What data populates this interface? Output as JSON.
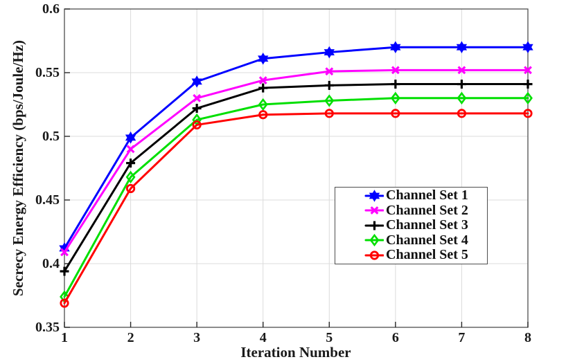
{
  "chart_data": {
    "type": "line",
    "xlabel": "Iteration Number",
    "ylabel": "Secrecy Energy Efficiency (bps/Joule/Hz)",
    "x": [
      1,
      2,
      3,
      4,
      5,
      6,
      7,
      8
    ],
    "xlim": [
      1,
      8
    ],
    "ylim": [
      0.35,
      0.6
    ],
    "xticks": [
      1,
      2,
      3,
      4,
      5,
      6,
      7,
      8
    ],
    "xtick_labels": [
      "1",
      "2",
      "3",
      "4",
      "5",
      "6",
      "7",
      "8"
    ],
    "yticks": [
      0.35,
      0.4,
      0.45,
      0.5,
      0.55,
      0.6
    ],
    "ytick_labels": [
      "0.35",
      "0.4",
      "0.45",
      "0.5",
      "0.55",
      "0.6"
    ],
    "grid": "on",
    "legend_position": "inside-middle-right",
    "series": [
      {
        "name": "Channel Set 1",
        "color": "#0000FF",
        "marker": "hexagram",
        "values": [
          0.412,
          0.499,
          0.543,
          0.561,
          0.566,
          0.57,
          0.57,
          0.57
        ]
      },
      {
        "name": "Channel Set 2",
        "color": "#FF00FF",
        "marker": "x",
        "values": [
          0.409,
          0.49,
          0.53,
          0.544,
          0.551,
          0.552,
          0.552,
          0.552
        ]
      },
      {
        "name": "Channel Set 3",
        "color": "#000000",
        "marker": "plus",
        "values": [
          0.394,
          0.479,
          0.522,
          0.538,
          0.54,
          0.541,
          0.541,
          0.541
        ]
      },
      {
        "name": "Channel Set 4",
        "color": "#00DF00",
        "marker": "diamond",
        "values": [
          0.374,
          0.468,
          0.513,
          0.525,
          0.528,
          0.53,
          0.53,
          0.53
        ]
      },
      {
        "name": "Channel Set 5",
        "color": "#FF0000",
        "marker": "circle",
        "values": [
          0.369,
          0.459,
          0.509,
          0.517,
          0.518,
          0.518,
          0.518,
          0.518
        ]
      }
    ],
    "line_width": 3,
    "colors": {
      "background": "#FFFFFF",
      "axis": "#4D4D4D",
      "tick": "#262626",
      "grid": "#DBDBDB",
      "text": "#1A1A1A"
    }
  }
}
